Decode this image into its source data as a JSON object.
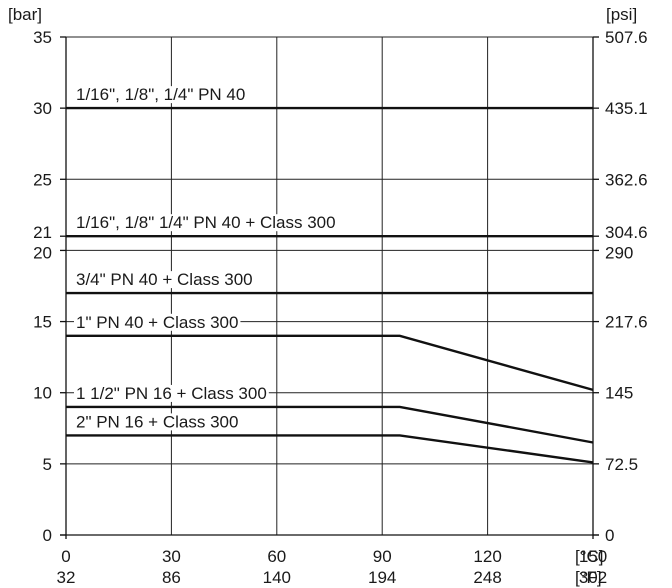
{
  "chart_data": {
    "type": "line",
    "left_unit": "[bar]",
    "right_unit": "[psi]",
    "x_unit_c": "[°C]",
    "x_unit_f": "[°F]",
    "xlim_c": [
      0,
      150
    ],
    "ylim_bar": [
      0,
      35
    ],
    "x_ticks": [
      {
        "c": 0,
        "c_label": "0",
        "f_label": "32"
      },
      {
        "c": 30,
        "c_label": "30",
        "f_label": "86"
      },
      {
        "c": 60,
        "c_label": "60",
        "f_label": "140"
      },
      {
        "c": 90,
        "c_label": "90",
        "f_label": "194"
      },
      {
        "c": 120,
        "c_label": "120",
        "f_label": "248"
      },
      {
        "c": 150,
        "c_label": "150",
        "f_label": "302"
      }
    ],
    "y_ticks_left": [
      {
        "bar": 0,
        "label": "0"
      },
      {
        "bar": 5,
        "label": "5"
      },
      {
        "bar": 10,
        "label": "10"
      },
      {
        "bar": 15,
        "label": "15"
      },
      {
        "bar": 20,
        "label": "20"
      },
      {
        "bar": 21,
        "label": "21"
      },
      {
        "bar": 25,
        "label": "25"
      },
      {
        "bar": 30,
        "label": "30"
      },
      {
        "bar": 35,
        "label": "35"
      }
    ],
    "y_ticks_right": [
      {
        "bar": 0,
        "label": "0"
      },
      {
        "bar": 5,
        "label": "72.5"
      },
      {
        "bar": 10,
        "label": "145"
      },
      {
        "bar": 15,
        "label": "217.6"
      },
      {
        "bar": 20,
        "label": "290"
      },
      {
        "bar": 21,
        "label": "304.6"
      },
      {
        "bar": 25,
        "label": "362.6"
      },
      {
        "bar": 30,
        "label": "435.1"
      },
      {
        "bar": 35,
        "label": "507.6"
      }
    ],
    "grid": true,
    "series": [
      {
        "name": "1/16\", 1/8\", 1/4\"  PN 40",
        "points": [
          [
            0,
            30
          ],
          [
            150,
            30
          ]
        ]
      },
      {
        "name": "1/16\", 1/8\" 1/4\"  PN 40 + Class 300",
        "points": [
          [
            0,
            21
          ],
          [
            150,
            21
          ]
        ]
      },
      {
        "name": "3/4\"  PN 40 + Class 300",
        "points": [
          [
            0,
            17
          ],
          [
            150,
            17
          ]
        ]
      },
      {
        "name": "1\"  PN 40 + Class 300",
        "points": [
          [
            0,
            14
          ],
          [
            95,
            14
          ],
          [
            150,
            10.2
          ]
        ]
      },
      {
        "name": "1 1/2\"  PN 16 + Class 300",
        "points": [
          [
            0,
            9
          ],
          [
            95,
            9
          ],
          [
            150,
            6.5
          ]
        ]
      },
      {
        "name": "2\"  PN 16 + Class 300",
        "points": [
          [
            0,
            7
          ],
          [
            95,
            7
          ],
          [
            150,
            5.1
          ]
        ]
      }
    ]
  }
}
